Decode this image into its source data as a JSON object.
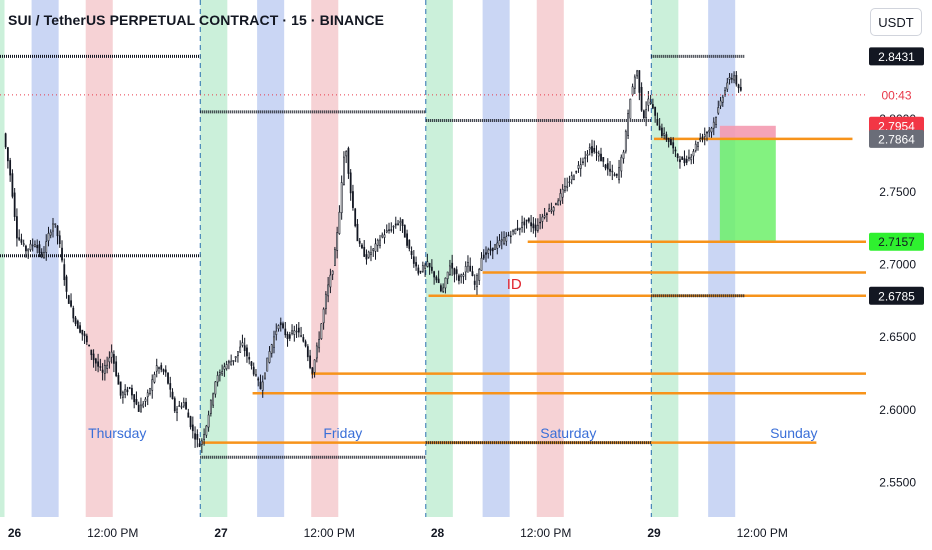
{
  "header": {
    "title": "SUI / TetherUS PERPETUAL CONTRACT · 15 · BINANCE",
    "currency": "USDT"
  },
  "colors": {
    "up": "#131722",
    "down": "#131722",
    "level": "#f7931a",
    "green_band": "#c8efd8",
    "blue_band": "#c7d4f3",
    "red_band": "#f6d0d3",
    "day_label": "#3a6fd8",
    "id_label": "#e0262f"
  },
  "chart_data": {
    "type": "line",
    "title": "SUI / TetherUS PERPETUAL CONTRACT · 15 · BINANCE",
    "xlabel": "",
    "ylabel": "",
    "x_ticks": [
      "26",
      "12:00 PM",
      "27",
      "12:00 PM",
      "28",
      "12:00 PM",
      "29",
      "12:00 PM"
    ],
    "y_ticks": [
      2.55,
      2.6,
      2.65,
      2.7,
      2.75,
      2.8
    ],
    "y_tick_labels": [
      "2.5500",
      "2.6000",
      "2.6500",
      "2.7000",
      "2.7500",
      "2.8000"
    ],
    "ylim": [
      2.5264,
      2.8819
    ],
    "xlim_hours": [
      -0.5,
      95.5
    ],
    "grid": false,
    "series": [
      {
        "values": [
          [
            0,
            2.79
          ],
          [
            0.8,
            2.76
          ],
          [
            1.5,
            2.72
          ],
          [
            2.5,
            2.71
          ],
          [
            3.5,
            2.715
          ],
          [
            4.3,
            2.705
          ],
          [
            5,
            2.72
          ],
          [
            5.6,
            2.73
          ],
          [
            6.2,
            2.715
          ],
          [
            7,
            2.68
          ],
          [
            8,
            2.66
          ],
          [
            9,
            2.65
          ],
          [
            10,
            2.635
          ],
          [
            11,
            2.625
          ],
          [
            12,
            2.64
          ],
          [
            13,
            2.61
          ],
          [
            14,
            2.615
          ],
          [
            15,
            2.6
          ],
          [
            16,
            2.61
          ],
          [
            17,
            2.63
          ],
          [
            18,
            2.625
          ],
          [
            19,
            2.6
          ],
          [
            20,
            2.605
          ],
          [
            21,
            2.585
          ],
          [
            21.8,
            2.575
          ],
          [
            22.5,
            2.59
          ],
          [
            23.5,
            2.62
          ],
          [
            24.5,
            2.63
          ],
          [
            25.5,
            2.635
          ],
          [
            26.5,
            2.645
          ],
          [
            27.5,
            2.63
          ],
          [
            28.5,
            2.615
          ],
          [
            29.5,
            2.64
          ],
          [
            30.5,
            2.66
          ],
          [
            31.5,
            2.65
          ],
          [
            32.5,
            2.655
          ],
          [
            33.5,
            2.645
          ],
          [
            34.2,
            2.625
          ],
          [
            35,
            2.65
          ],
          [
            35.8,
            2.68
          ],
          [
            36.6,
            2.7
          ],
          [
            37.3,
            2.74
          ],
          [
            37.9,
            2.785
          ],
          [
            38.5,
            2.75
          ],
          [
            39.3,
            2.715
          ],
          [
            40.2,
            2.705
          ],
          [
            41,
            2.71
          ],
          [
            42,
            2.72
          ],
          [
            43,
            2.725
          ],
          [
            44,
            2.73
          ],
          [
            45,
            2.71
          ],
          [
            46,
            2.695
          ],
          [
            47,
            2.7
          ],
          [
            48,
            2.69
          ],
          [
            48.6,
            2.68
          ],
          [
            49.5,
            2.7
          ],
          [
            50.5,
            2.69
          ],
          [
            51.5,
            2.7
          ],
          [
            52.3,
            2.685
          ],
          [
            53,
            2.705
          ],
          [
            54,
            2.71
          ],
          [
            55,
            2.715
          ],
          [
            56,
            2.72
          ],
          [
            57,
            2.725
          ],
          [
            58,
            2.73
          ],
          [
            59,
            2.725
          ],
          [
            60,
            2.735
          ],
          [
            61,
            2.74
          ],
          [
            62,
            2.75
          ],
          [
            63,
            2.76
          ],
          [
            64,
            2.77
          ],
          [
            65,
            2.78
          ],
          [
            66,
            2.775
          ],
          [
            67,
            2.765
          ],
          [
            68,
            2.76
          ],
          [
            68.8,
            2.78
          ],
          [
            69.5,
            2.815
          ],
          [
            70.2,
            2.835
          ],
          [
            70.9,
            2.8
          ],
          [
            71.6,
            2.815
          ],
          [
            72.3,
            2.8
          ],
          [
            73,
            2.79
          ],
          [
            73.8,
            2.785
          ],
          [
            74.6,
            2.775
          ],
          [
            75.4,
            2.77
          ],
          [
            76.2,
            2.775
          ],
          [
            77,
            2.785
          ],
          [
            77.8,
            2.79
          ],
          [
            78.6,
            2.795
          ],
          [
            79.4,
            2.81
          ],
          [
            80.2,
            2.825
          ],
          [
            81,
            2.83
          ],
          [
            81.5,
            2.82
          ]
        ]
      }
    ],
    "day_labels": [
      {
        "text": "Thursday",
        "x": 12.5
      },
      {
        "text": "Friday",
        "x": 37.5
      },
      {
        "text": "Saturday",
        "x": 62.5
      },
      {
        "text": "Sunday",
        "x": 87.5
      }
    ],
    "day_starts": [
      21.7,
      46.7,
      71.7
    ],
    "bands": [
      {
        "color": "green",
        "x0": -0.5,
        "x1": 0
      },
      {
        "color": "blue",
        "x0": 3,
        "x1": 6
      },
      {
        "color": "red",
        "x0": 9,
        "x1": 12
      },
      {
        "color": "green",
        "x0": 21.7,
        "x1": 24.7
      },
      {
        "color": "blue",
        "x0": 28,
        "x1": 31
      },
      {
        "color": "red",
        "x0": 34,
        "x1": 37
      },
      {
        "color": "green",
        "x0": 46.7,
        "x1": 49.7
      },
      {
        "color": "blue",
        "x0": 53,
        "x1": 56
      },
      {
        "color": "red",
        "x0": 59,
        "x1": 62
      },
      {
        "color": "green",
        "x0": 71.7,
        "x1": 74.7
      },
      {
        "color": "blue",
        "x0": 78,
        "x1": 81
      }
    ],
    "dotted_levels": [
      {
        "y": 2.8431,
        "x0": -0.5,
        "x1": 21.7
      },
      {
        "y": 2.805,
        "x0": 21.7,
        "x1": 46.7
      },
      {
        "y": 2.799,
        "x0": 46.7,
        "x1": 71.7
      },
      {
        "y": 2.8431,
        "x0": 71.7,
        "x1": 82
      },
      {
        "y": 2.706,
        "x0": -0.5,
        "x1": 21.7
      },
      {
        "y": 2.5675,
        "x0": 21.7,
        "x1": 46.7
      },
      {
        "y": 2.5775,
        "x0": 46.7,
        "x1": 71.7
      },
      {
        "y": 2.6785,
        "x0": 71.7,
        "x1": 82
      }
    ],
    "orange_levels": [
      {
        "y": 2.7864,
        "x0": 72,
        "x1": 94
      },
      {
        "y": 2.7157,
        "x0": 58,
        "x1": 96
      },
      {
        "y": 2.6945,
        "x0": 53,
        "x1": 96
      },
      {
        "y": 2.6785,
        "x0": 47,
        "x1": 96
      },
      {
        "y": 2.625,
        "x0": 34,
        "x1": 95.5
      },
      {
        "y": 2.6115,
        "x0": 27.5,
        "x1": 96
      },
      {
        "y": 2.5775,
        "x0": 21.8,
        "x1": 90
      }
    ],
    "position": {
      "entry": 2.7864,
      "stop": 2.7954,
      "target": 2.7157,
      "x0": 79.3,
      "x1": 85.5
    },
    "current_price_line": 2.8167,
    "annotation": {
      "text": "ID",
      "x": 56.5,
      "y": 2.6805
    },
    "price_tags": [
      {
        "value": 2.8431,
        "text": "2.8431",
        "style": "black"
      },
      {
        "value": 2.8167,
        "text": "00:43",
        "style": "red-outline"
      },
      {
        "value": 2.7954,
        "text": "2.7954",
        "style": "red"
      },
      {
        "value": 2.7864,
        "text": "2.7864",
        "style": "gray"
      },
      {
        "value": 2.7157,
        "text": "2.7157",
        "style": "green"
      },
      {
        "value": 2.6785,
        "text": "2.6785",
        "style": "black"
      }
    ]
  }
}
